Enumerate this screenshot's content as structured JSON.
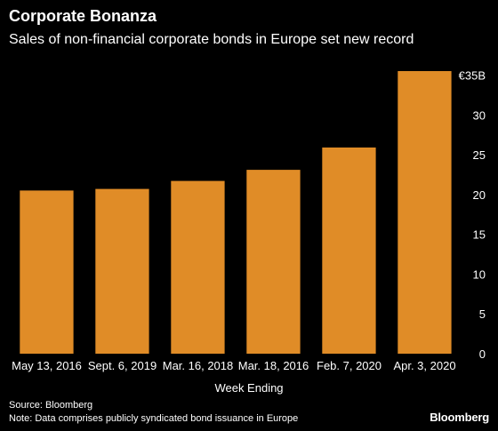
{
  "header": {
    "title": "Corporate Bonanza",
    "subtitle": "Sales of non-financial corporate bonds in Europe set new record"
  },
  "footer": {
    "source": "Source: Bloomberg",
    "note": "Note: Data comprises publicly syndicated bond issuance in Europe",
    "brand": "Bloomberg"
  },
  "chart_data": {
    "type": "bar",
    "title": "Corporate Bonanza",
    "subtitle": "Sales of non-financial corporate bonds in Europe set new record",
    "categories": [
      "May 13, 2016",
      "Sept. 6, 2019",
      "Mar. 16, 2018",
      "Mar. 18, 2016",
      "Feb. 7, 2020",
      "Apr. 3, 2020"
    ],
    "values": [
      20.5,
      20.7,
      21.7,
      23.1,
      25.9,
      35.5
    ],
    "xlabel": "Week Ending",
    "ylabel": "",
    "unit": "€ billions",
    "ylim": [
      0,
      35.5
    ],
    "yticks": [
      0,
      5,
      10,
      15,
      20,
      25,
      30,
      35
    ],
    "ytick_labels": [
      "0",
      "5",
      "10",
      "15",
      "20",
      "25",
      "30",
      "€35B"
    ],
    "y_axis_side": "right",
    "grid": false,
    "bar_color": "#e08c27",
    "background": "#000000"
  }
}
